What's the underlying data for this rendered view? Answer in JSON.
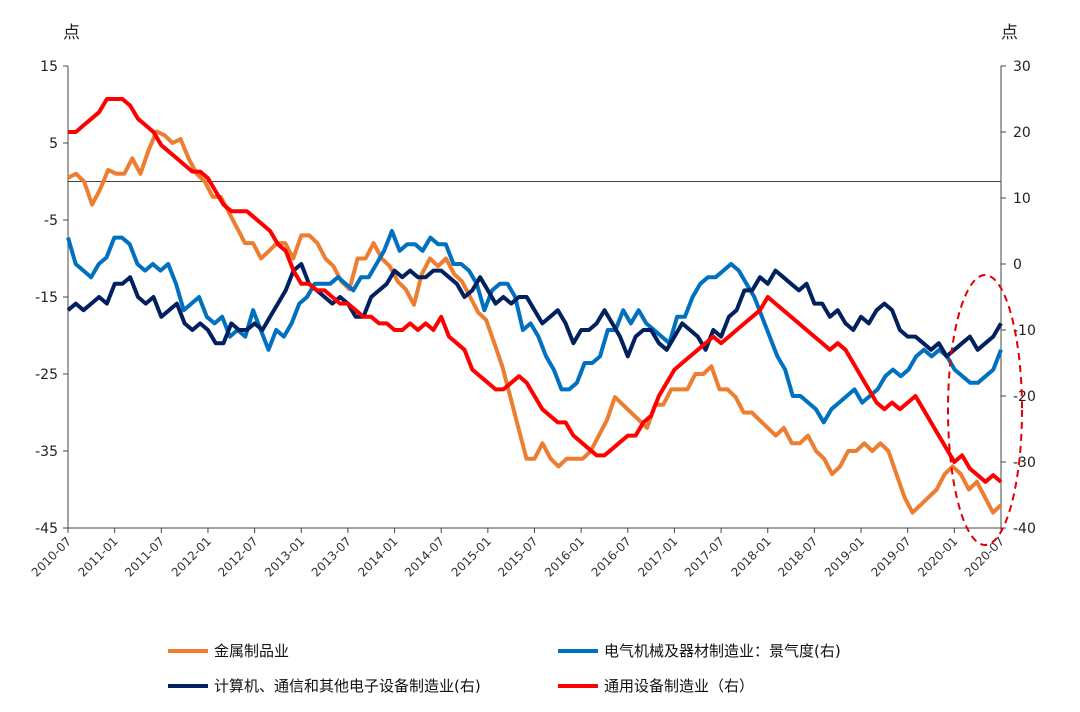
{
  "chart_data": {
    "type": "line",
    "left_axis": {
      "unit": "点",
      "ylim": [
        -45,
        15
      ],
      "ticks": [
        15,
        5,
        -5,
        -15,
        -25,
        -35,
        -45
      ]
    },
    "right_axis": {
      "unit": "点",
      "ylim": [
        -40,
        30
      ],
      "ticks": [
        30,
        20,
        10,
        0,
        -10,
        -20,
        -30,
        -40
      ]
    },
    "x_start": "2010-07",
    "x_end": "2020-07",
    "x_tick_labels": [
      "2010-07",
      "2011-01",
      "2011-07",
      "2012-01",
      "2012-07",
      "2013-01",
      "2013-07",
      "2014-01",
      "2014-07",
      "2015-01",
      "2015-07",
      "2016-01",
      "2016-07",
      "2017-01",
      "2017-07",
      "2018-01",
      "2018-07",
      "2019-01",
      "2019-07",
      "2020-01",
      "2020-07"
    ],
    "annotation": "red dashed ellipse highlighting 2020 end of series",
    "series": [
      {
        "name": "金属制品业",
        "axis": "left",
        "color": "#ED7D31",
        "values": [
          0.5,
          1,
          0,
          -3,
          -1,
          1.5,
          1,
          1,
          3,
          1,
          4,
          6.5,
          6,
          5,
          5.5,
          3,
          1,
          0,
          -2,
          -2,
          -4,
          -6,
          -8,
          -8,
          -10,
          -9,
          -8,
          -8,
          -10,
          -7,
          -7,
          -8,
          -10,
          -11,
          -13,
          -14,
          -10,
          -10,
          -8,
          -10,
          -11,
          -13,
          -14,
          -16,
          -12,
          -10,
          -11,
          -10,
          -12,
          -13,
          -15,
          -17,
          -18,
          -21,
          -24,
          -28,
          -32,
          -36,
          -36,
          -34,
          -36,
          -37,
          -36,
          -36,
          -36,
          -35,
          -33,
          -31,
          -28,
          -29,
          -30,
          -31,
          -32,
          -29,
          -29,
          -27,
          -27,
          -27,
          -25,
          -25,
          -24,
          -27,
          -27,
          -28,
          -30,
          -30,
          -31,
          -32,
          -33,
          -32,
          -34,
          -34,
          -33,
          -35,
          -36,
          -38,
          -37,
          -35,
          -35,
          -34,
          -35,
          -34,
          -35,
          -38,
          -41,
          -43,
          -42,
          -41,
          -40,
          -38,
          -37,
          -38,
          -40,
          -39,
          -41,
          -43,
          -42
        ]
      },
      {
        "name": "电气机械及器材制造业：景气度(右)",
        "axis": "right",
        "color": "#0070C0",
        "values": [
          4,
          0,
          -1,
          -2,
          0,
          1,
          4,
          4,
          3,
          0,
          -1,
          0,
          -1,
          0,
          -3,
          -7,
          -6,
          -5,
          -8,
          -9,
          -8,
          -11,
          -10,
          -11,
          -7,
          -10,
          -13,
          -10,
          -11,
          -9,
          -6,
          -5,
          -3,
          -3,
          -3,
          -2,
          -3,
          -4,
          -2,
          -2,
          0,
          2,
          5,
          2,
          3,
          3,
          2,
          4,
          3,
          3,
          0,
          0,
          -1,
          -3,
          -7,
          -4,
          -3,
          -3,
          -5,
          -10,
          -9,
          -11,
          -14,
          -16,
          -19,
          -19,
          -18,
          -15,
          -15,
          -14,
          -10,
          -10,
          -7,
          -9,
          -7,
          -9,
          -10,
          -11,
          -12,
          -8,
          -8,
          -5,
          -3,
          -2,
          -2,
          -1,
          0,
          -1,
          -3,
          -5,
          -8,
          -11,
          -14,
          -16,
          -20,
          -20,
          -21,
          -22,
          -24,
          -22,
          -21,
          -20,
          -19,
          -21,
          -20,
          -19,
          -17,
          -16,
          -17,
          -16,
          -14,
          -13,
          -14,
          -13,
          -14,
          -16,
          -17,
          -18,
          -18,
          -17,
          -16,
          -13
        ]
      }
    ],
    "series_2": [
      {
        "name": "计算机、通信和其他电子设备制造业(右)",
        "axis": "right",
        "color": "#002060",
        "values": [
          -7,
          -6,
          -7,
          -6,
          -5,
          -6,
          -3,
          -3,
          -2,
          -5,
          -6,
          -5,
          -8,
          -7,
          -6,
          -9,
          -10,
          -9,
          -10,
          -12,
          -12,
          -9,
          -10,
          -10,
          -9,
          -10,
          -8,
          -6,
          -4,
          -1,
          0,
          -3,
          -4,
          -5,
          -6,
          -5,
          -6,
          -8,
          -8,
          -5,
          -4,
          -3,
          -1,
          -2,
          -1,
          -2,
          -2,
          -1,
          -1,
          -2,
          -3,
          -5,
          -4,
          -2,
          -4,
          -6,
          -5,
          -6,
          -5,
          -5,
          -7,
          -9,
          -8,
          -7,
          -9,
          -12,
          -10,
          -10,
          -9,
          -7,
          -9,
          -11,
          -14,
          -11,
          -10,
          -10,
          -12,
          -13,
          -11,
          -9,
          -10,
          -11,
          -13,
          -10,
          -11,
          -8,
          -7,
          -4,
          -4,
          -2,
          -3,
          -1,
          -2,
          -3,
          -4,
          -3,
          -6,
          -6,
          -8,
          -7,
          -9,
          -10,
          -8,
          -9,
          -7,
          -6,
          -7,
          -10,
          -11,
          -11,
          -12,
          -13,
          -12,
          -14,
          -13,
          -12,
          -11,
          -13,
          -12,
          -11,
          -9
        ]
      },
      {
        "name": "通用设备制造业（右）",
        "axis": "right",
        "color": "#FF0000",
        "values": [
          20,
          20,
          21,
          22,
          23,
          25,
          25,
          25,
          24,
          22,
          21,
          20,
          18,
          17,
          16,
          15,
          14,
          14,
          13,
          11,
          9,
          8,
          8,
          8,
          7,
          6,
          5,
          3,
          2,
          -1,
          -3,
          -3,
          -4,
          -4,
          -5,
          -6,
          -6,
          -7,
          -8,
          -8,
          -9,
          -9,
          -10,
          -10,
          -9,
          -10,
          -9,
          -10,
          -8,
          -11,
          -12,
          -13,
          -16,
          -17,
          -18,
          -19,
          -19,
          -18,
          -17,
          -18,
          -20,
          -22,
          -23,
          -24,
          -24,
          -26,
          -27,
          -28,
          -29,
          -29,
          -28,
          -27,
          -26,
          -26,
          -24,
          -23,
          -20,
          -18,
          -16,
          -15,
          -14,
          -13,
          -12,
          -11,
          -12,
          -11,
          -10,
          -9,
          -8,
          -7,
          -5,
          -6,
          -7,
          -8,
          -9,
          -10,
          -11,
          -12,
          -13,
          -12,
          -13,
          -15,
          -17,
          -19,
          -21,
          -22,
          -21,
          -22,
          -21,
          -20,
          -22,
          -24,
          -26,
          -28,
          -30,
          -29,
          -31,
          -32,
          -33,
          -32,
          -33
        ]
      }
    ],
    "legend": [
      "金属制品业",
      "电气机械及器材制造业：景气度(右)",
      "计算机、通信和其他电子设备制造业(右)",
      "通用设备制造业（右）"
    ]
  }
}
